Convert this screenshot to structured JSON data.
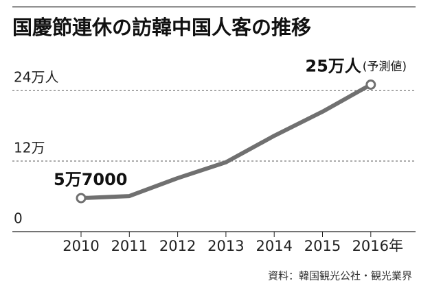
{
  "chart_data": {
    "type": "line",
    "title": "国慶節連休の訪韓中国人客の推移",
    "categories": [
      "2010",
      "2011",
      "2012",
      "2013",
      "2014",
      "2015",
      "2016年"
    ],
    "values": [
      5.7,
      6.05,
      9.1,
      11.8,
      16.3,
      20.4,
      25
    ],
    "value_labels": [
      "5万7000",
      null,
      null,
      null,
      null,
      null,
      "25万人"
    ],
    "annotation": "(予測値)",
    "color": "#707070",
    "ylim": [
      0,
      28
    ],
    "yticks": [
      0,
      {
        "value": 12,
        "label": "12万"
      },
      {
        "value": 24,
        "label": "24万人"
      }
    ],
    "grid": true,
    "source": "資料：韓国観光公社・観光業界"
  }
}
